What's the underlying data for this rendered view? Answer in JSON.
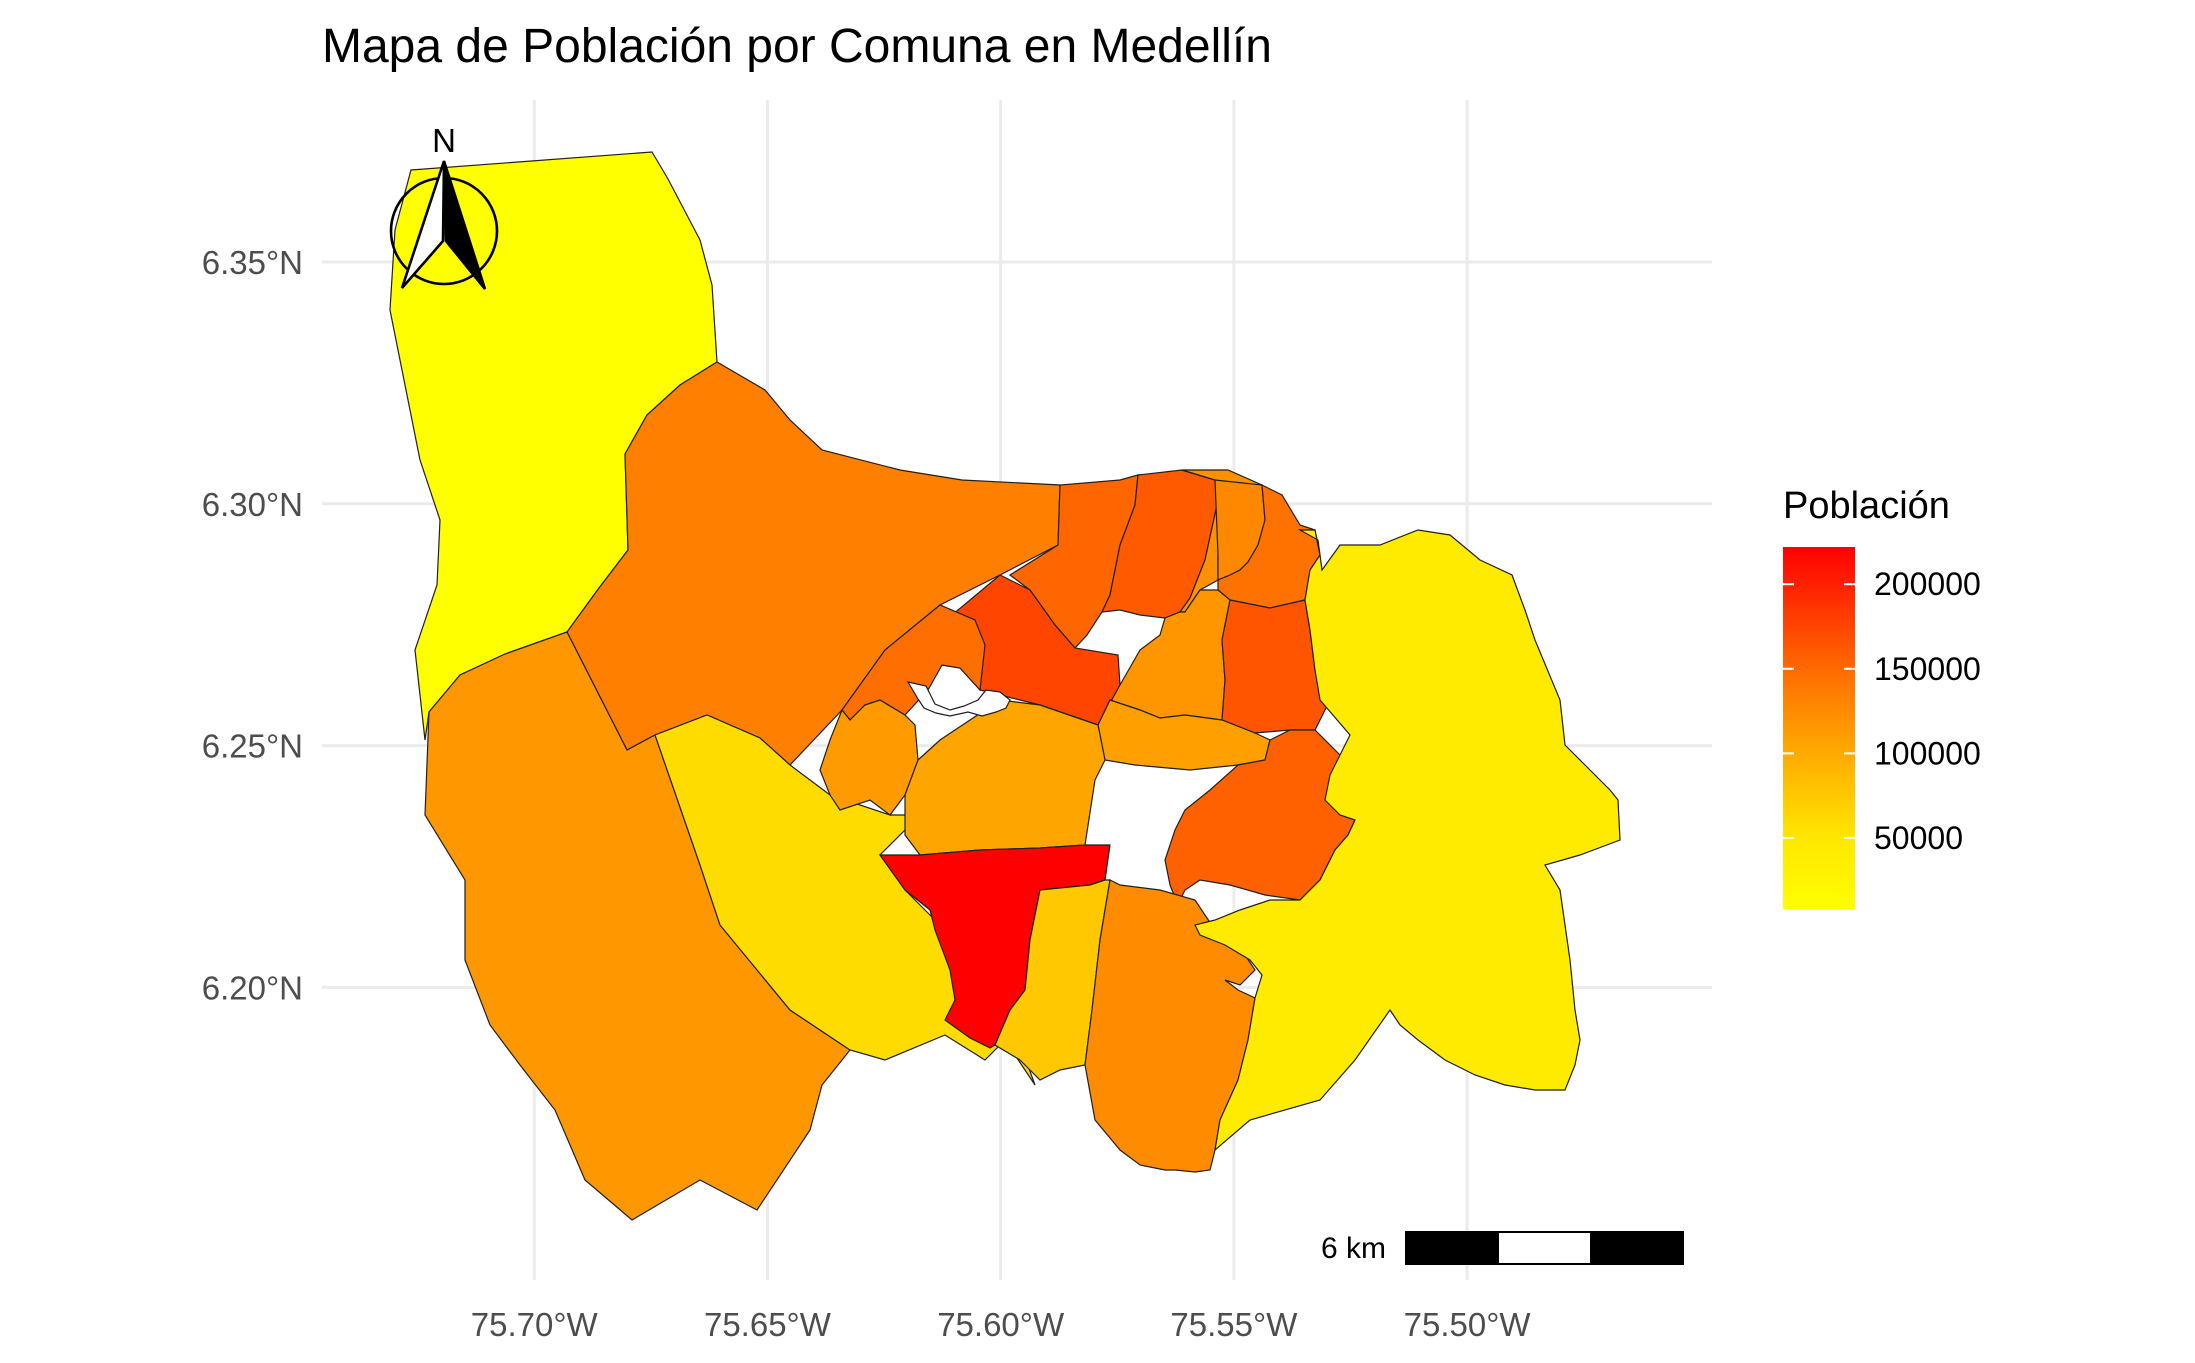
{
  "title": "Mapa de Población por Comuna en Medellín",
  "north_arrow": {
    "label": "N"
  },
  "scale_bar": {
    "label": "6 km"
  },
  "legend": {
    "title": "Población",
    "ticks": [
      "200000",
      "150000",
      "100000",
      "50000"
    ],
    "tick_values": [
      200000,
      150000,
      100000,
      50000
    ],
    "range": [
      8000,
      222000
    ],
    "colors": [
      "#FF0000",
      "#FF3F00",
      "#FF7D00",
      "#FFB200",
      "#FFE600",
      "#FFFF00"
    ]
  },
  "axes": {
    "x": {
      "ticks": [
        "75.70°W",
        "75.65°W",
        "75.60°W",
        "75.55°W",
        "75.50°W"
      ],
      "values": [
        -75.7,
        -75.65,
        -75.6,
        -75.55,
        -75.5
      ],
      "range": [
        -75.7455,
        -75.4475
      ]
    },
    "y": {
      "ticks": [
        "6.35°N",
        "6.30°N",
        "6.25°N",
        "6.20°N"
      ],
      "values": [
        6.35,
        6.3,
        6.25,
        6.2
      ],
      "range": [
        6.1395,
        6.3835
      ]
    },
    "grid": true
  },
  "regions": [
    {
      "id": "region-1",
      "population": 20000,
      "color": "#FFFF00"
    },
    {
      "id": "region-2",
      "population": 140000,
      "color": "#FF7F00"
    },
    {
      "id": "region-3",
      "population": 110000,
      "color": "#FF9800"
    },
    {
      "id": "region-4",
      "population": 60000,
      "color": "#FFDC00"
    },
    {
      "id": "region-5",
      "population": 165000,
      "color": "#FF6600"
    },
    {
      "id": "region-6",
      "population": 195000,
      "color": "#FF4500"
    },
    {
      "id": "region-7",
      "population": 180000,
      "color": "#FF5A00"
    },
    {
      "id": "region-8",
      "population": 120000,
      "color": "#FF9000"
    },
    {
      "id": "region-9",
      "population": 130000,
      "color": "#FF8800"
    },
    {
      "id": "region-10",
      "population": 150000,
      "color": "#FF7200"
    },
    {
      "id": "region-11",
      "population": 115000,
      "color": "#FF9600"
    },
    {
      "id": "region-12",
      "population": 175000,
      "color": "#FF5500"
    },
    {
      "id": "region-13",
      "population": 150000,
      "color": "#FF6E00"
    },
    {
      "id": "region-14",
      "population": 115000,
      "color": "#FF9A00"
    },
    {
      "id": "region-15",
      "population": 105000,
      "color": "#FFA000"
    },
    {
      "id": "region-16",
      "population": 95000,
      "color": "#FFA500"
    },
    {
      "id": "region-17",
      "population": 165000,
      "color": "#FF6000"
    },
    {
      "id": "region-18",
      "population": 222000,
      "color": "#FF0000"
    },
    {
      "id": "region-19",
      "population": 75000,
      "color": "#FFC800"
    },
    {
      "id": "region-20",
      "population": 120000,
      "color": "#FF8C00"
    },
    {
      "id": "region-21",
      "population": 30000,
      "color": "#FFEB00"
    }
  ]
}
